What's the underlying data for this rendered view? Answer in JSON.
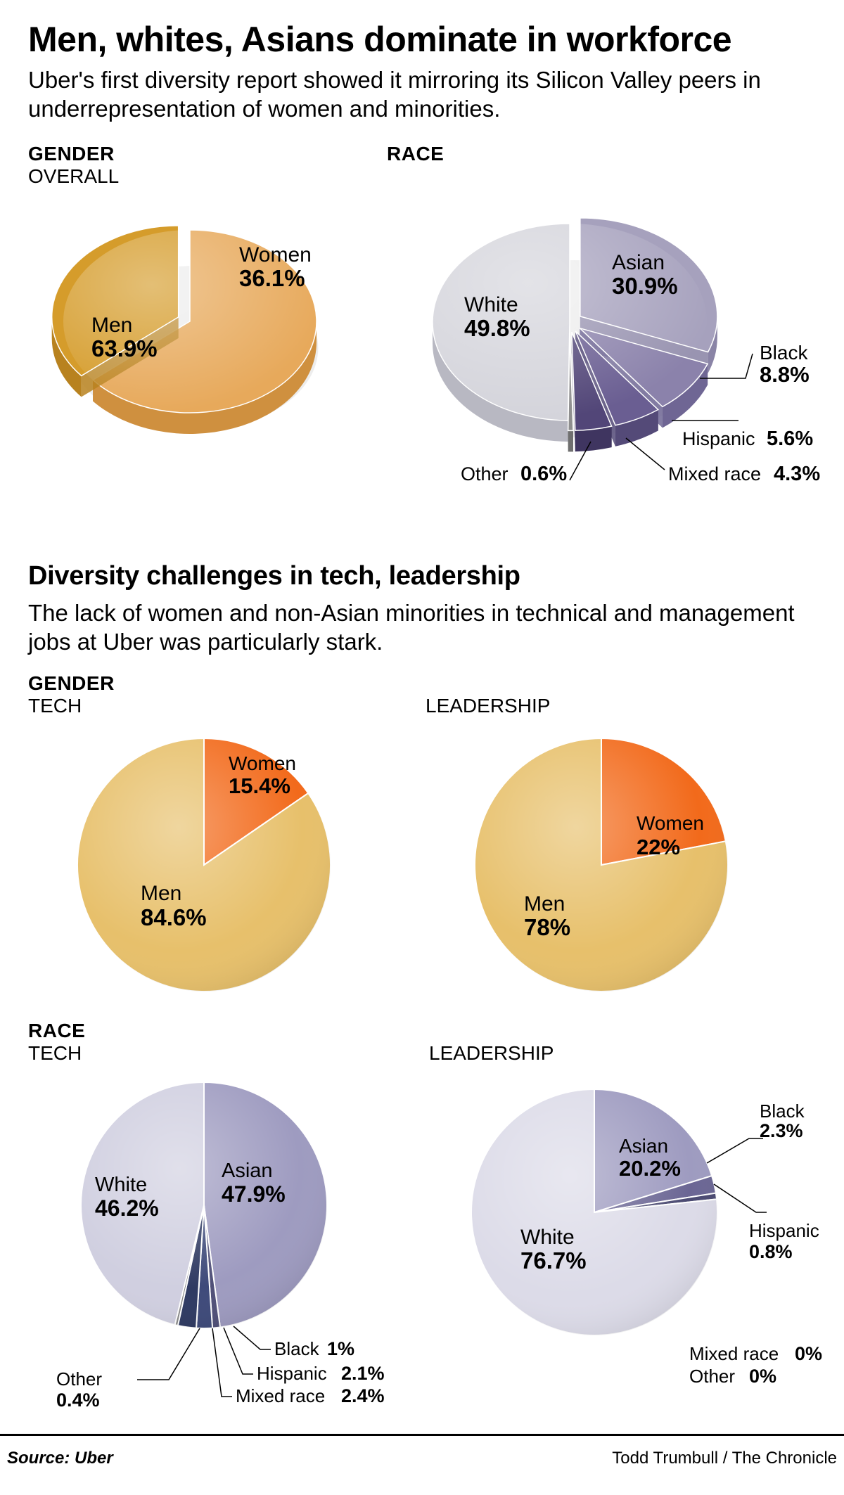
{
  "title": "Men, whites, Asians dominate in workforce",
  "subtitle": "Uber's first diversity report showed it mirroring its Silicon Valley peers in underrepresentation of women and minorities.",
  "section1": {
    "gender_heading": "GENDER",
    "gender_sub": "OVERALL",
    "race_heading": "RACE"
  },
  "gender_overall": {
    "type": "pie-3d-exploded",
    "slices": [
      {
        "label": "Men",
        "value": 63.9,
        "color": "#e7a95b",
        "side": "#cf903f"
      },
      {
        "label": "Women",
        "value": 36.1,
        "color": "#d59c2b",
        "side": "#b8821f",
        "exploded": true
      }
    ]
  },
  "race_overall": {
    "type": "pie-3d-exploded",
    "slices": [
      {
        "label": "Asian",
        "value": 30.9,
        "color": "#a6a1bd",
        "side": "#8a84a6",
        "exploded": true
      },
      {
        "label": "Black",
        "value": 8.8,
        "color": "#8b82ab",
        "side": "#6f6694",
        "exploded": true
      },
      {
        "label": "Hispanic",
        "value": 5.6,
        "color": "#6a5e92",
        "side": "#544a78",
        "exploded": true
      },
      {
        "label": "Mixed race",
        "value": 4.3,
        "color": "#524678",
        "side": "#3f3560",
        "exploded": true
      },
      {
        "label": "Other",
        "value": 0.6,
        "color": "#8e8e8e",
        "side": "#6f6f6f",
        "exploded": true
      },
      {
        "label": "White",
        "value": 49.8,
        "color": "#d4d4db",
        "side": "#b8b8c2"
      }
    ]
  },
  "section2": {
    "title": "Diversity challenges in tech, leadership",
    "subtitle": "The lack of women and non-Asian minorities in technical and management jobs at Uber was particularly stark.",
    "gender_heading": "GENDER",
    "tech_sub": "TECH",
    "leadership_sub": "LEADERSHIP",
    "race_heading": "RACE"
  },
  "gender_tech": {
    "type": "pie",
    "slices": [
      {
        "label": "Women",
        "value": 15.4,
        "color": "#f26a1b"
      },
      {
        "label": "Men",
        "value": 84.6,
        "color": "#e7c06b"
      }
    ],
    "stroke": "#ffffff"
  },
  "gender_leadership": {
    "type": "pie",
    "slices": [
      {
        "label": "Women",
        "value": 22,
        "color": "#f26a1b"
      },
      {
        "label": "Men",
        "value": 78,
        "color": "#e7c06b"
      }
    ],
    "stroke": "#ffffff"
  },
  "race_tech": {
    "type": "pie",
    "slices": [
      {
        "label": "Asian",
        "value": 47.9,
        "color": "#9e9bc0"
      },
      {
        "label": "Black",
        "value": 1.0,
        "color": "#505078"
      },
      {
        "label": "Hispanic",
        "value": 2.1,
        "color": "#3e4a7a"
      },
      {
        "label": "Mixed race",
        "value": 2.4,
        "color": "#2f3a62"
      },
      {
        "label": "Other",
        "value": 0.4,
        "color": "#888888"
      },
      {
        "label": "White",
        "value": 46.2,
        "color": "#d0cfe0"
      }
    ],
    "stroke": "#ffffff"
  },
  "race_leadership": {
    "type": "pie",
    "slices": [
      {
        "label": "Asian",
        "value": 20.2,
        "color": "#9e9bc0"
      },
      {
        "label": "Black",
        "value": 2.3,
        "color": "#6b6694"
      },
      {
        "label": "Hispanic",
        "value": 0.8,
        "color": "#4b4a72"
      },
      {
        "label": "Mixed race",
        "value": 0,
        "color": "#3a3a5e"
      },
      {
        "label": "Other",
        "value": 0,
        "color": "#888888"
      },
      {
        "label": "White",
        "value": 76.7,
        "color": "#dcdbe8"
      }
    ],
    "stroke": "#ffffff"
  },
  "footer": {
    "source": "Source: Uber",
    "credit": "Todd Trumbull / The Chronicle"
  },
  "style": {
    "background": "#ffffff",
    "text": "#000000",
    "leader_stroke": "#000000",
    "pie_gap_stroke": "#ffffff",
    "pie_gap_width": 2,
    "title_fontsize": 50,
    "subtitle_fontsize": 33,
    "heading_fontsize": 28,
    "midtitle_fontsize": 38,
    "callout_label_fontsize": 30,
    "callout_value_fontsize": 33
  }
}
